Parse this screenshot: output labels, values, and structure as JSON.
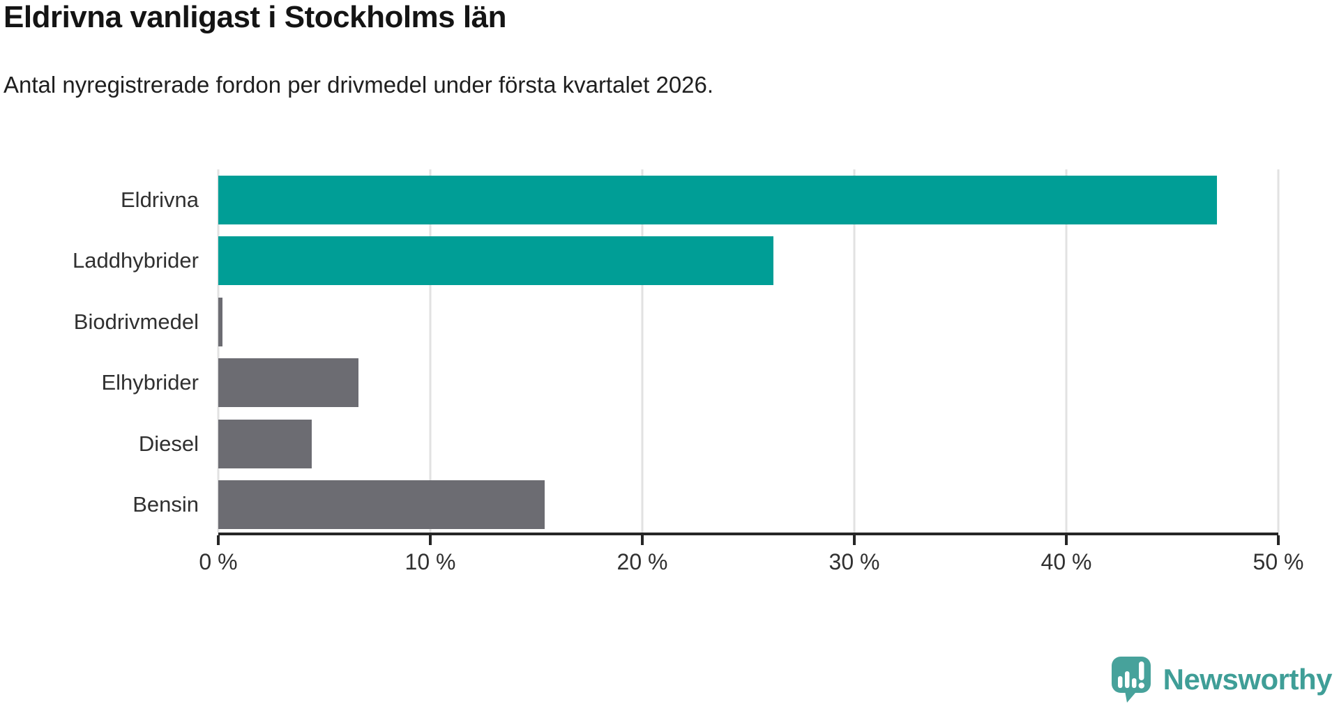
{
  "header": {
    "title": "Eldrivna vanligast i Stockholms län",
    "subtitle": "Antal nyregistrerade fordon per drivmedel under första kvartalet 2026."
  },
  "chart_data": {
    "type": "bar",
    "orientation": "horizontal",
    "title": "Eldrivna vanligast i Stockholms län",
    "subtitle": "Antal nyregistrerade fordon per drivmedel under första kvartalet 2026.",
    "categories": [
      "Eldrivna",
      "Laddhybrider",
      "Biodrivmedel",
      "Elhybrider",
      "Diesel",
      "Bensin"
    ],
    "values": [
      47.1,
      26.2,
      0.2,
      6.6,
      4.4,
      15.4
    ],
    "unit": "%",
    "xlabel": "",
    "ylabel": "",
    "xlim": [
      0,
      50
    ],
    "x_ticks": [
      0,
      10,
      20,
      30,
      40,
      50
    ],
    "x_tick_labels": [
      "0 %",
      "10 %",
      "20 %",
      "30 %",
      "40 %",
      "50 %"
    ],
    "bar_colors": [
      "#009e96",
      "#009e96",
      "#6c6c72",
      "#6c6c72",
      "#6c6c72",
      "#6c6c72"
    ],
    "highlight_color": "#009e96",
    "default_color": "#6c6c72",
    "grid": true,
    "gridline_color": "#e2e2e2",
    "axis_color": "#262626",
    "legend": null
  },
  "footer": {
    "brand": "Newsworthy",
    "brand_color": "#3f9e97",
    "logo_icon": "newsworthy-speech-bubble-chart-icon"
  }
}
